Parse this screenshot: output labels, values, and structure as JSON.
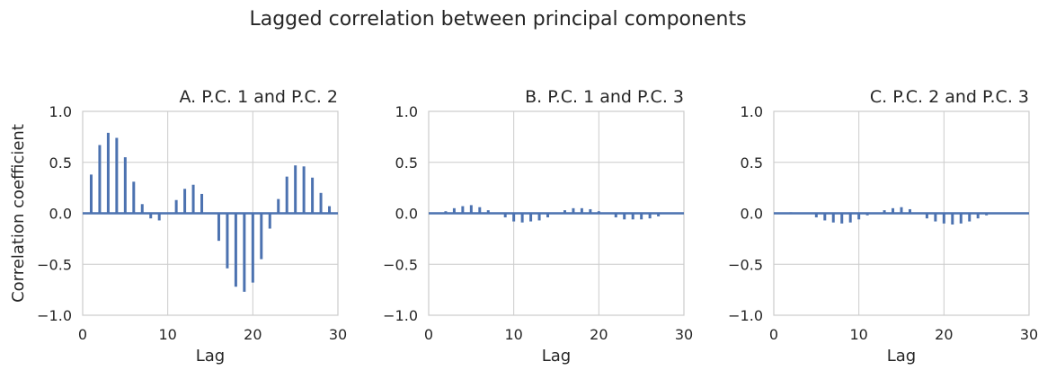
{
  "figure": {
    "title": "Lagged correlation between principal components",
    "accent_color": "#4c72b0"
  },
  "chart_data": [
    {
      "type": "bar",
      "title": "A. P.C. 1 and P.C. 2",
      "xlabel": "Lag",
      "ylabel": "Correlation coefficient",
      "xlim": [
        0,
        30
      ],
      "ylim": [
        -1.0,
        1.0
      ],
      "xticks": [
        0,
        10,
        20,
        30
      ],
      "yticks": [
        -1.0,
        -0.5,
        0.0,
        0.5,
        1.0
      ],
      "grid": true,
      "x": [
        1,
        2,
        3,
        4,
        5,
        6,
        7,
        8,
        9,
        10,
        11,
        12,
        13,
        14,
        15,
        16,
        17,
        18,
        19,
        20,
        21,
        22,
        23,
        24,
        25,
        26,
        27,
        28,
        29
      ],
      "values": [
        0.38,
        0.67,
        0.79,
        0.74,
        0.55,
        0.31,
        0.09,
        -0.05,
        -0.07,
        0.0,
        0.13,
        0.24,
        0.28,
        0.19,
        0.0,
        -0.27,
        -0.54,
        -0.72,
        -0.77,
        -0.68,
        -0.45,
        -0.15,
        0.14,
        0.36,
        0.47,
        0.46,
        0.35,
        0.2,
        0.07
      ]
    },
    {
      "type": "bar",
      "title": "B. P.C. 1 and P.C. 3",
      "xlabel": "Lag",
      "ylabel": "",
      "xlim": [
        0,
        30
      ],
      "ylim": [
        -1.0,
        1.0
      ],
      "xticks": [
        0,
        10,
        20,
        30
      ],
      "yticks": [
        -1.0,
        -0.5,
        0.0,
        0.5,
        1.0
      ],
      "grid": true,
      "x": [
        1,
        2,
        3,
        4,
        5,
        6,
        7,
        8,
        9,
        10,
        11,
        12,
        13,
        14,
        15,
        16,
        17,
        18,
        19,
        20,
        21,
        22,
        23,
        24,
        25,
        26,
        27,
        28,
        29
      ],
      "values": [
        0.0,
        0.02,
        0.05,
        0.07,
        0.08,
        0.06,
        0.03,
        0.0,
        -0.04,
        -0.08,
        -0.09,
        -0.08,
        -0.07,
        -0.04,
        0.0,
        0.03,
        0.05,
        0.05,
        0.04,
        0.02,
        0.0,
        -0.04,
        -0.06,
        -0.06,
        -0.06,
        -0.05,
        -0.03,
        0.0,
        0.0
      ]
    },
    {
      "type": "bar",
      "title": "C. P.C. 2 and P.C. 3",
      "xlabel": "Lag",
      "ylabel": "",
      "xlim": [
        0,
        30
      ],
      "ylim": [
        -1.0,
        1.0
      ],
      "xticks": [
        0,
        10,
        20,
        30
      ],
      "yticks": [
        -1.0,
        -0.5,
        0.0,
        0.5,
        1.0
      ],
      "grid": true,
      "x": [
        1,
        2,
        3,
        4,
        5,
        6,
        7,
        8,
        9,
        10,
        11,
        12,
        13,
        14,
        15,
        16,
        17,
        18,
        19,
        20,
        21,
        22,
        23,
        24,
        25,
        26,
        27,
        28,
        29
      ],
      "values": [
        0.0,
        0.01,
        0.0,
        0.0,
        -0.04,
        -0.07,
        -0.09,
        -0.1,
        -0.09,
        -0.06,
        -0.02,
        0.0,
        0.03,
        0.05,
        0.06,
        0.04,
        0.0,
        -0.05,
        -0.08,
        -0.1,
        -0.11,
        -0.1,
        -0.08,
        -0.05,
        -0.02,
        0.0,
        0.0,
        0.0,
        0.0
      ]
    }
  ]
}
